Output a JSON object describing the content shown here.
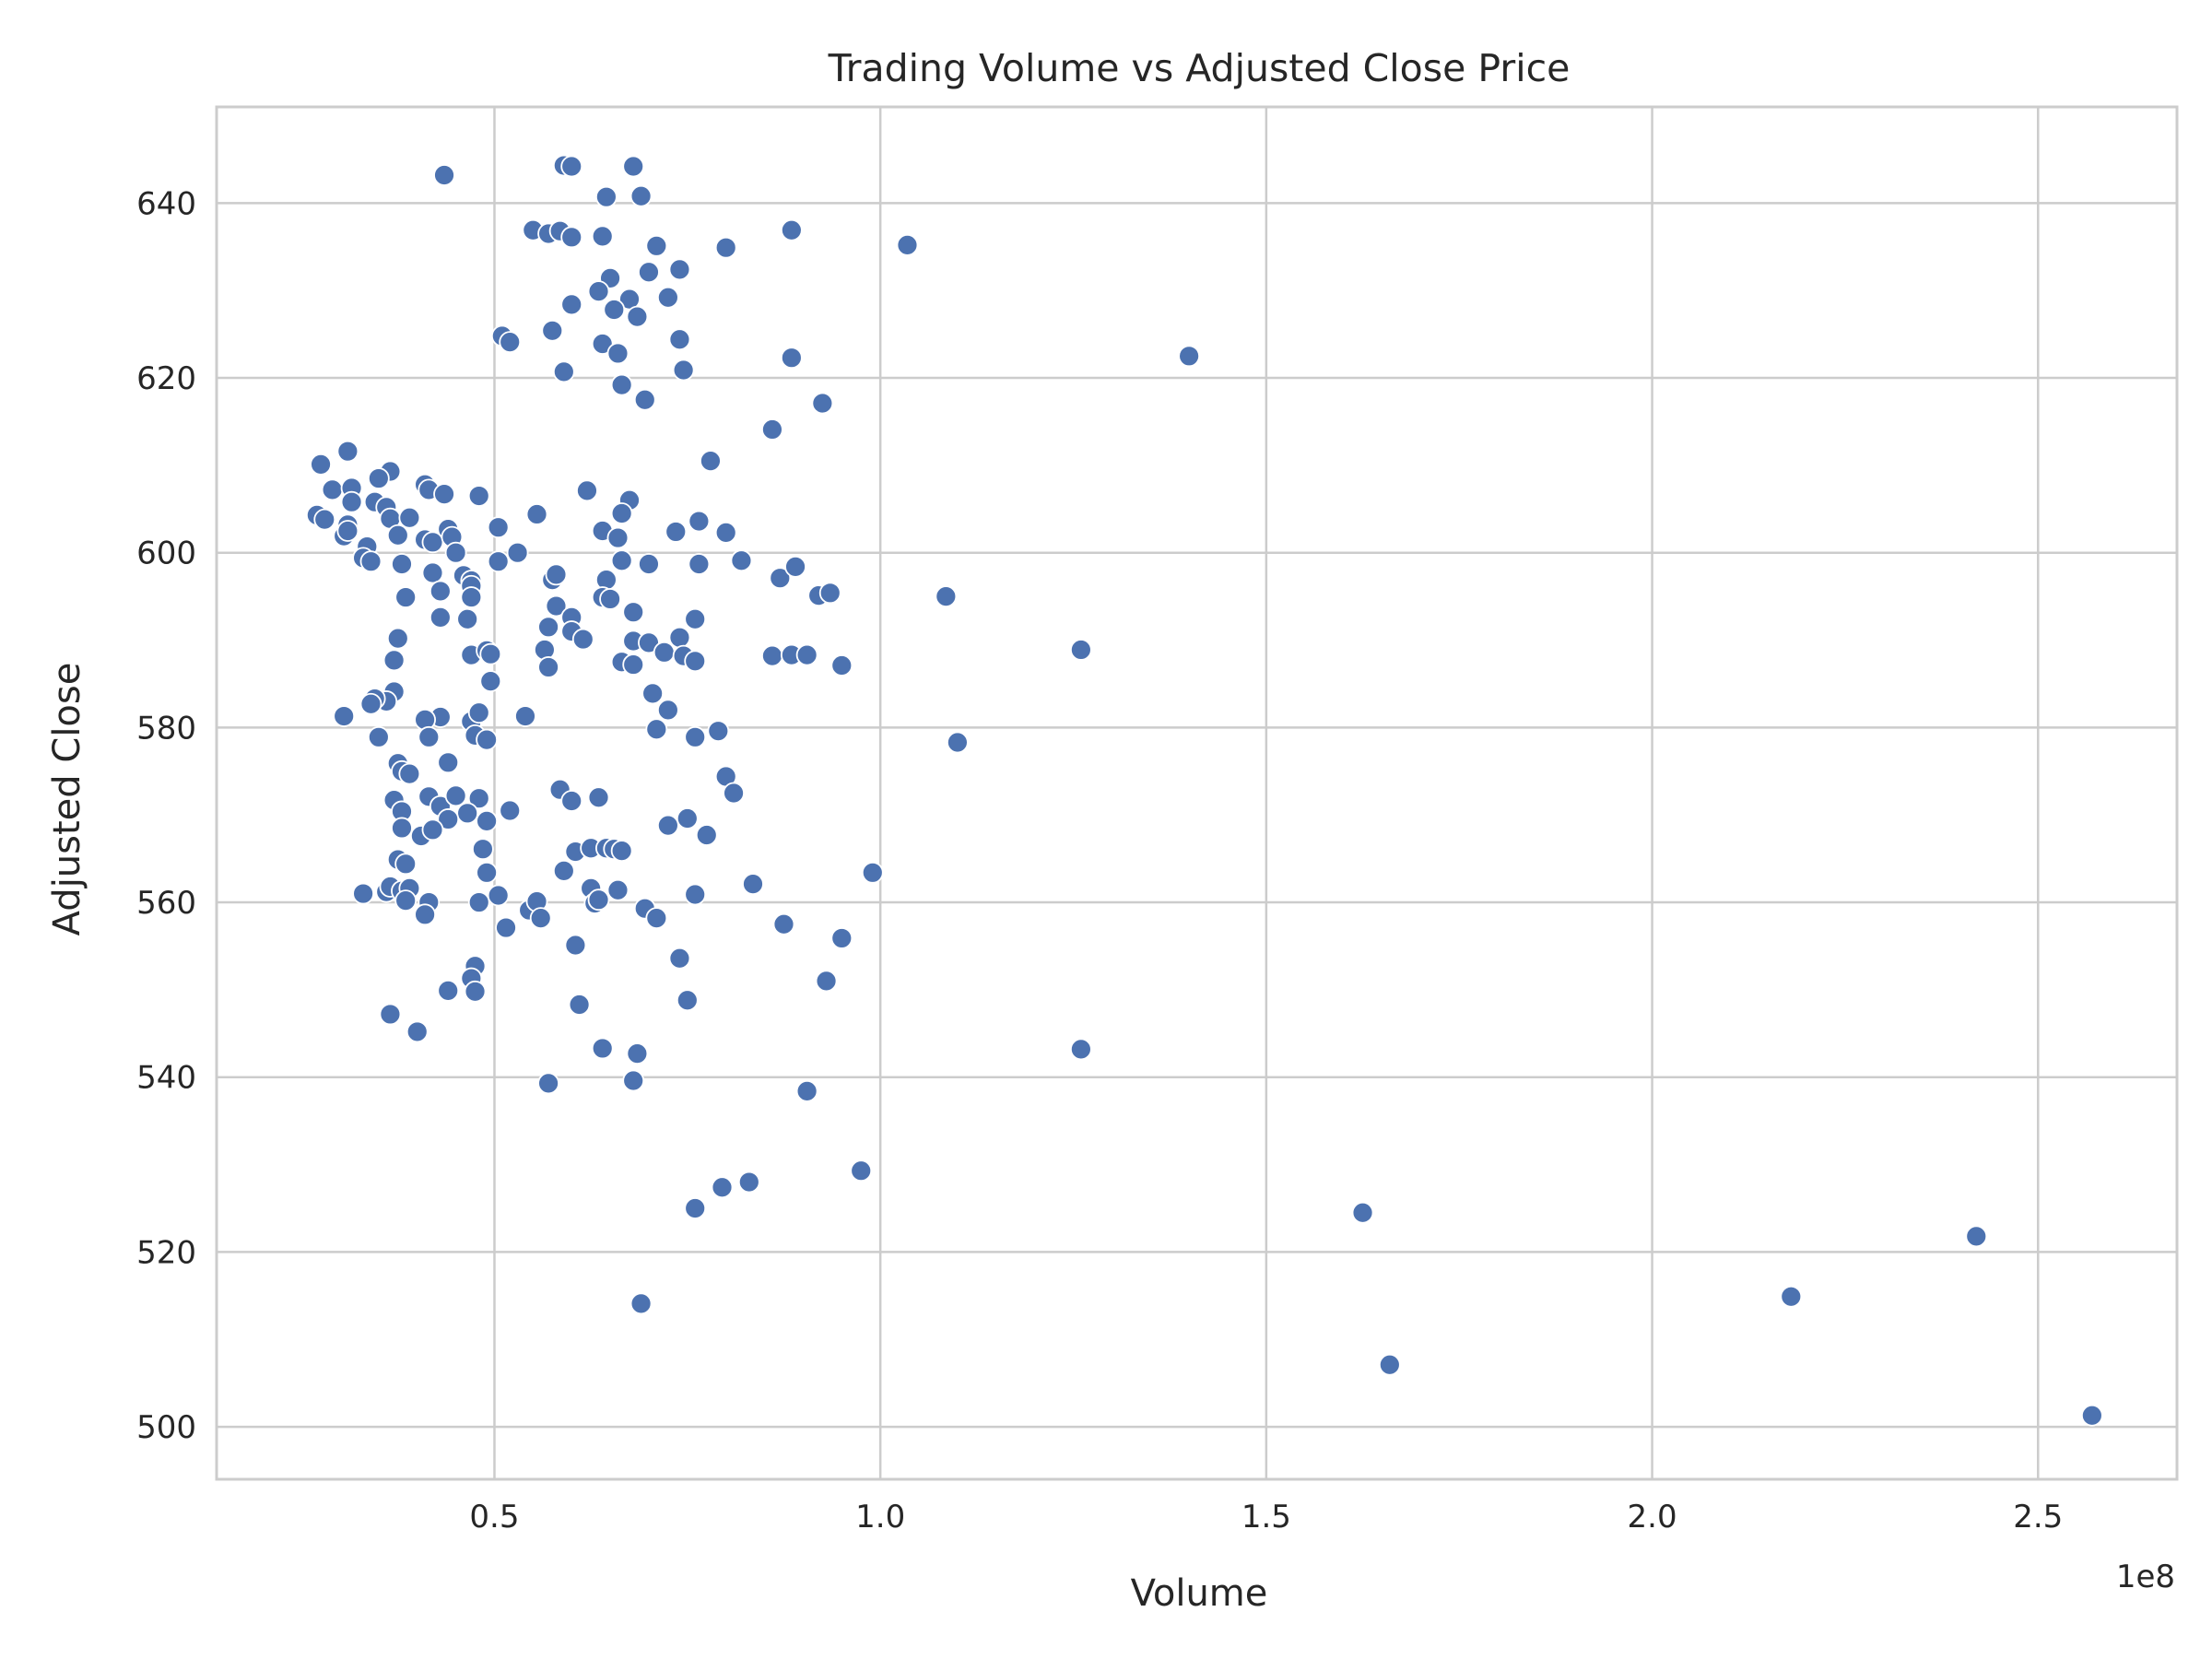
{
  "chart_data": {
    "type": "scatter",
    "title": "Trading Volume vs Adjusted Close Price",
    "xlabel": "Volume",
    "ylabel": "Adjusted Close",
    "x_offset_label": "1e8",
    "x_ticks": [
      "0.5",
      "1.0",
      "1.5",
      "2.0",
      "2.5"
    ],
    "x_tick_values": [
      0.5,
      1.0,
      1.5,
      2.0,
      2.5
    ],
    "y_ticks": [
      "500",
      "520",
      "540",
      "560",
      "580",
      "600",
      "620",
      "640"
    ],
    "y_tick_values": [
      500,
      520,
      540,
      560,
      580,
      600,
      620,
      640
    ],
    "xlim": [
      0.14,
      2.68
    ],
    "ylim": [
      494,
      651
    ],
    "grid": true,
    "marker_color": "#4c72b0",
    "points": [
      [
        0.435,
        643.2
      ],
      [
        0.59,
        644.3
      ],
      [
        0.6,
        644.2
      ],
      [
        0.68,
        644.2
      ],
      [
        0.645,
        640.7
      ],
      [
        0.69,
        640.8
      ],
      [
        0.55,
        636.9
      ],
      [
        0.57,
        636.5
      ],
      [
        0.585,
        636.8
      ],
      [
        0.6,
        636.1
      ],
      [
        0.64,
        636.2
      ],
      [
        0.885,
        636.9
      ],
      [
        0.71,
        635.1
      ],
      [
        0.8,
        634.9
      ],
      [
        1.035,
        635.2
      ],
      [
        0.74,
        632.4
      ],
      [
        0.7,
        632.1
      ],
      [
        0.65,
        631.4
      ],
      [
        0.635,
        629.9
      ],
      [
        0.725,
        629.2
      ],
      [
        0.675,
        629.0
      ],
      [
        0.6,
        628.4
      ],
      [
        0.655,
        627.8
      ],
      [
        0.685,
        627.0
      ],
      [
        0.51,
        624.8
      ],
      [
        0.52,
        624.1
      ],
      [
        0.575,
        625.4
      ],
      [
        0.64,
        623.9
      ],
      [
        0.74,
        624.4
      ],
      [
        0.66,
        622.8
      ],
      [
        0.885,
        622.3
      ],
      [
        1.4,
        622.5
      ],
      [
        0.59,
        620.7
      ],
      [
        0.745,
        620.9
      ],
      [
        0.665,
        619.2
      ],
      [
        0.695,
        617.5
      ],
      [
        0.925,
        617.1
      ],
      [
        0.86,
        614.1
      ],
      [
        0.78,
        610.5
      ],
      [
        0.275,
        610.1
      ],
      [
        0.31,
        611.6
      ],
      [
        0.29,
        607.2
      ],
      [
        0.315,
        607.4
      ],
      [
        0.315,
        605.8
      ],
      [
        0.345,
        605.8
      ],
      [
        0.36,
        605.2
      ],
      [
        0.365,
        609.3
      ],
      [
        0.35,
        608.5
      ],
      [
        0.41,
        607.8
      ],
      [
        0.415,
        607.2
      ],
      [
        0.435,
        606.7
      ],
      [
        0.48,
        606.5
      ],
      [
        0.62,
        607.1
      ],
      [
        0.675,
        606.0
      ],
      [
        0.665,
        604.5
      ],
      [
        0.555,
        604.4
      ],
      [
        0.27,
        604.3
      ],
      [
        0.28,
        603.8
      ],
      [
        0.31,
        603.2
      ],
      [
        0.305,
        601.9
      ],
      [
        0.31,
        602.5
      ],
      [
        0.335,
        600.7
      ],
      [
        0.33,
        599.4
      ],
      [
        0.34,
        599.0
      ],
      [
        0.365,
        603.9
      ],
      [
        0.39,
        604.0
      ],
      [
        0.375,
        602.0
      ],
      [
        0.41,
        601.5
      ],
      [
        0.42,
        601.2
      ],
      [
        0.44,
        602.7
      ],
      [
        0.445,
        601.8
      ],
      [
        0.45,
        600.0
      ],
      [
        0.505,
        602.9
      ],
      [
        0.53,
        600.0
      ],
      [
        0.505,
        599.0
      ],
      [
        0.64,
        602.5
      ],
      [
        0.66,
        601.7
      ],
      [
        0.735,
        602.4
      ],
      [
        0.765,
        603.6
      ],
      [
        0.8,
        602.3
      ],
      [
        0.38,
        598.7
      ],
      [
        0.42,
        597.7
      ],
      [
        0.46,
        597.4
      ],
      [
        0.47,
        596.8
      ],
      [
        0.47,
        596.2
      ],
      [
        0.47,
        594.9
      ],
      [
        0.43,
        595.6
      ],
      [
        0.385,
        594.9
      ],
      [
        0.43,
        592.6
      ],
      [
        0.465,
        592.4
      ],
      [
        0.575,
        596.9
      ],
      [
        0.58,
        597.5
      ],
      [
        0.645,
        596.9
      ],
      [
        0.665,
        599.1
      ],
      [
        0.7,
        598.7
      ],
      [
        0.765,
        598.7
      ],
      [
        0.82,
        599.1
      ],
      [
        0.87,
        597.1
      ],
      [
        0.89,
        598.4
      ],
      [
        0.92,
        595.1
      ],
      [
        0.935,
        595.4
      ],
      [
        1.085,
        595.0
      ],
      [
        0.58,
        593.9
      ],
      [
        0.57,
        591.5
      ],
      [
        0.6,
        592.6
      ],
      [
        0.6,
        591.0
      ],
      [
        0.615,
        590.1
      ],
      [
        0.64,
        594.9
      ],
      [
        0.65,
        594.7
      ],
      [
        0.68,
        593.2
      ],
      [
        0.76,
        592.4
      ],
      [
        0.375,
        590.2
      ],
      [
        0.37,
        587.7
      ],
      [
        0.47,
        588.3
      ],
      [
        0.49,
        588.8
      ],
      [
        0.495,
        588.4
      ],
      [
        0.565,
        588.9
      ],
      [
        0.57,
        586.9
      ],
      [
        0.665,
        587.5
      ],
      [
        0.68,
        587.2
      ],
      [
        0.68,
        589.9
      ],
      [
        0.7,
        589.7
      ],
      [
        0.72,
        588.6
      ],
      [
        0.74,
        590.3
      ],
      [
        0.745,
        588.2
      ],
      [
        0.76,
        587.6
      ],
      [
        0.86,
        588.2
      ],
      [
        0.885,
        588.3
      ],
      [
        0.905,
        588.3
      ],
      [
        0.95,
        587.1
      ],
      [
        1.26,
        588.9
      ],
      [
        0.495,
        585.3
      ],
      [
        0.37,
        584.1
      ],
      [
        0.36,
        583.0
      ],
      [
        0.345,
        583.3
      ],
      [
        0.34,
        582.7
      ],
      [
        0.305,
        581.3
      ],
      [
        0.43,
        581.2
      ],
      [
        0.41,
        580.9
      ],
      [
        0.47,
        580.7
      ],
      [
        0.48,
        581.7
      ],
      [
        0.54,
        581.3
      ],
      [
        0.705,
        583.9
      ],
      [
        0.725,
        582.0
      ],
      [
        0.71,
        579.8
      ],
      [
        0.79,
        579.6
      ],
      [
        0.76,
        578.9
      ],
      [
        1.1,
        578.3
      ],
      [
        0.35,
        578.9
      ],
      [
        0.415,
        578.9
      ],
      [
        0.475,
        579.1
      ],
      [
        0.49,
        578.6
      ],
      [
        0.375,
        575.9
      ],
      [
        0.38,
        575.0
      ],
      [
        0.39,
        574.7
      ],
      [
        0.44,
        576.0
      ],
      [
        0.8,
        574.4
      ],
      [
        0.81,
        572.5
      ],
      [
        0.37,
        571.7
      ],
      [
        0.38,
        570.4
      ],
      [
        0.415,
        572.1
      ],
      [
        0.43,
        571.0
      ],
      [
        0.45,
        572.2
      ],
      [
        0.48,
        571.9
      ],
      [
        0.52,
        570.5
      ],
      [
        0.465,
        570.2
      ],
      [
        0.44,
        569.5
      ],
      [
        0.49,
        569.3
      ],
      [
        0.38,
        568.5
      ],
      [
        0.405,
        567.6
      ],
      [
        0.42,
        568.3
      ],
      [
        0.585,
        572.9
      ],
      [
        0.6,
        571.6
      ],
      [
        0.635,
        572.0
      ],
      [
        0.725,
        568.8
      ],
      [
        0.75,
        569.6
      ],
      [
        0.775,
        567.7
      ],
      [
        0.485,
        566.1
      ],
      [
        0.605,
        565.8
      ],
      [
        0.625,
        566.2
      ],
      [
        0.645,
        566.2
      ],
      [
        0.655,
        566.1
      ],
      [
        0.665,
        565.9
      ],
      [
        0.375,
        564.9
      ],
      [
        0.385,
        564.4
      ],
      [
        0.49,
        563.4
      ],
      [
        0.59,
        563.6
      ],
      [
        0.99,
        563.4
      ],
      [
        0.33,
        561.0
      ],
      [
        0.36,
        561.2
      ],
      [
        0.365,
        561.8
      ],
      [
        0.38,
        561.3
      ],
      [
        0.39,
        561.6
      ],
      [
        0.385,
        560.2
      ],
      [
        0.415,
        560.0
      ],
      [
        0.41,
        558.6
      ],
      [
        0.48,
        560.0
      ],
      [
        0.505,
        560.8
      ],
      [
        0.545,
        559.1
      ],
      [
        0.555,
        560.1
      ],
      [
        0.56,
        558.2
      ],
      [
        0.625,
        561.6
      ],
      [
        0.63,
        559.9
      ],
      [
        0.635,
        560.3
      ],
      [
        0.66,
        561.4
      ],
      [
        0.695,
        559.3
      ],
      [
        0.71,
        558.2
      ],
      [
        0.76,
        560.9
      ],
      [
        0.835,
        562.1
      ],
      [
        0.515,
        557.1
      ],
      [
        0.875,
        557.5
      ],
      [
        0.95,
        555.9
      ],
      [
        0.605,
        555.1
      ],
      [
        0.74,
        553.6
      ],
      [
        0.475,
        552.7
      ],
      [
        0.47,
        551.3
      ],
      [
        0.93,
        551.0
      ],
      [
        0.44,
        549.9
      ],
      [
        0.475,
        549.8
      ],
      [
        0.75,
        548.8
      ],
      [
        0.61,
        548.3
      ],
      [
        0.365,
        547.2
      ],
      [
        0.4,
        545.2
      ],
      [
        0.64,
        543.3
      ],
      [
        0.685,
        542.7
      ],
      [
        1.26,
        543.2
      ],
      [
        0.57,
        539.3
      ],
      [
        0.68,
        539.6
      ],
      [
        0.905,
        538.4
      ],
      [
        0.975,
        529.3
      ],
      [
        0.83,
        528.0
      ],
      [
        0.795,
        527.4
      ],
      [
        0.76,
        525.0
      ],
      [
        1.625,
        524.5
      ],
      [
        2.42,
        521.8
      ],
      [
        0.69,
        514.1
      ],
      [
        2.18,
        514.9
      ],
      [
        1.66,
        507.1
      ],
      [
        2.57,
        501.3
      ]
    ]
  }
}
